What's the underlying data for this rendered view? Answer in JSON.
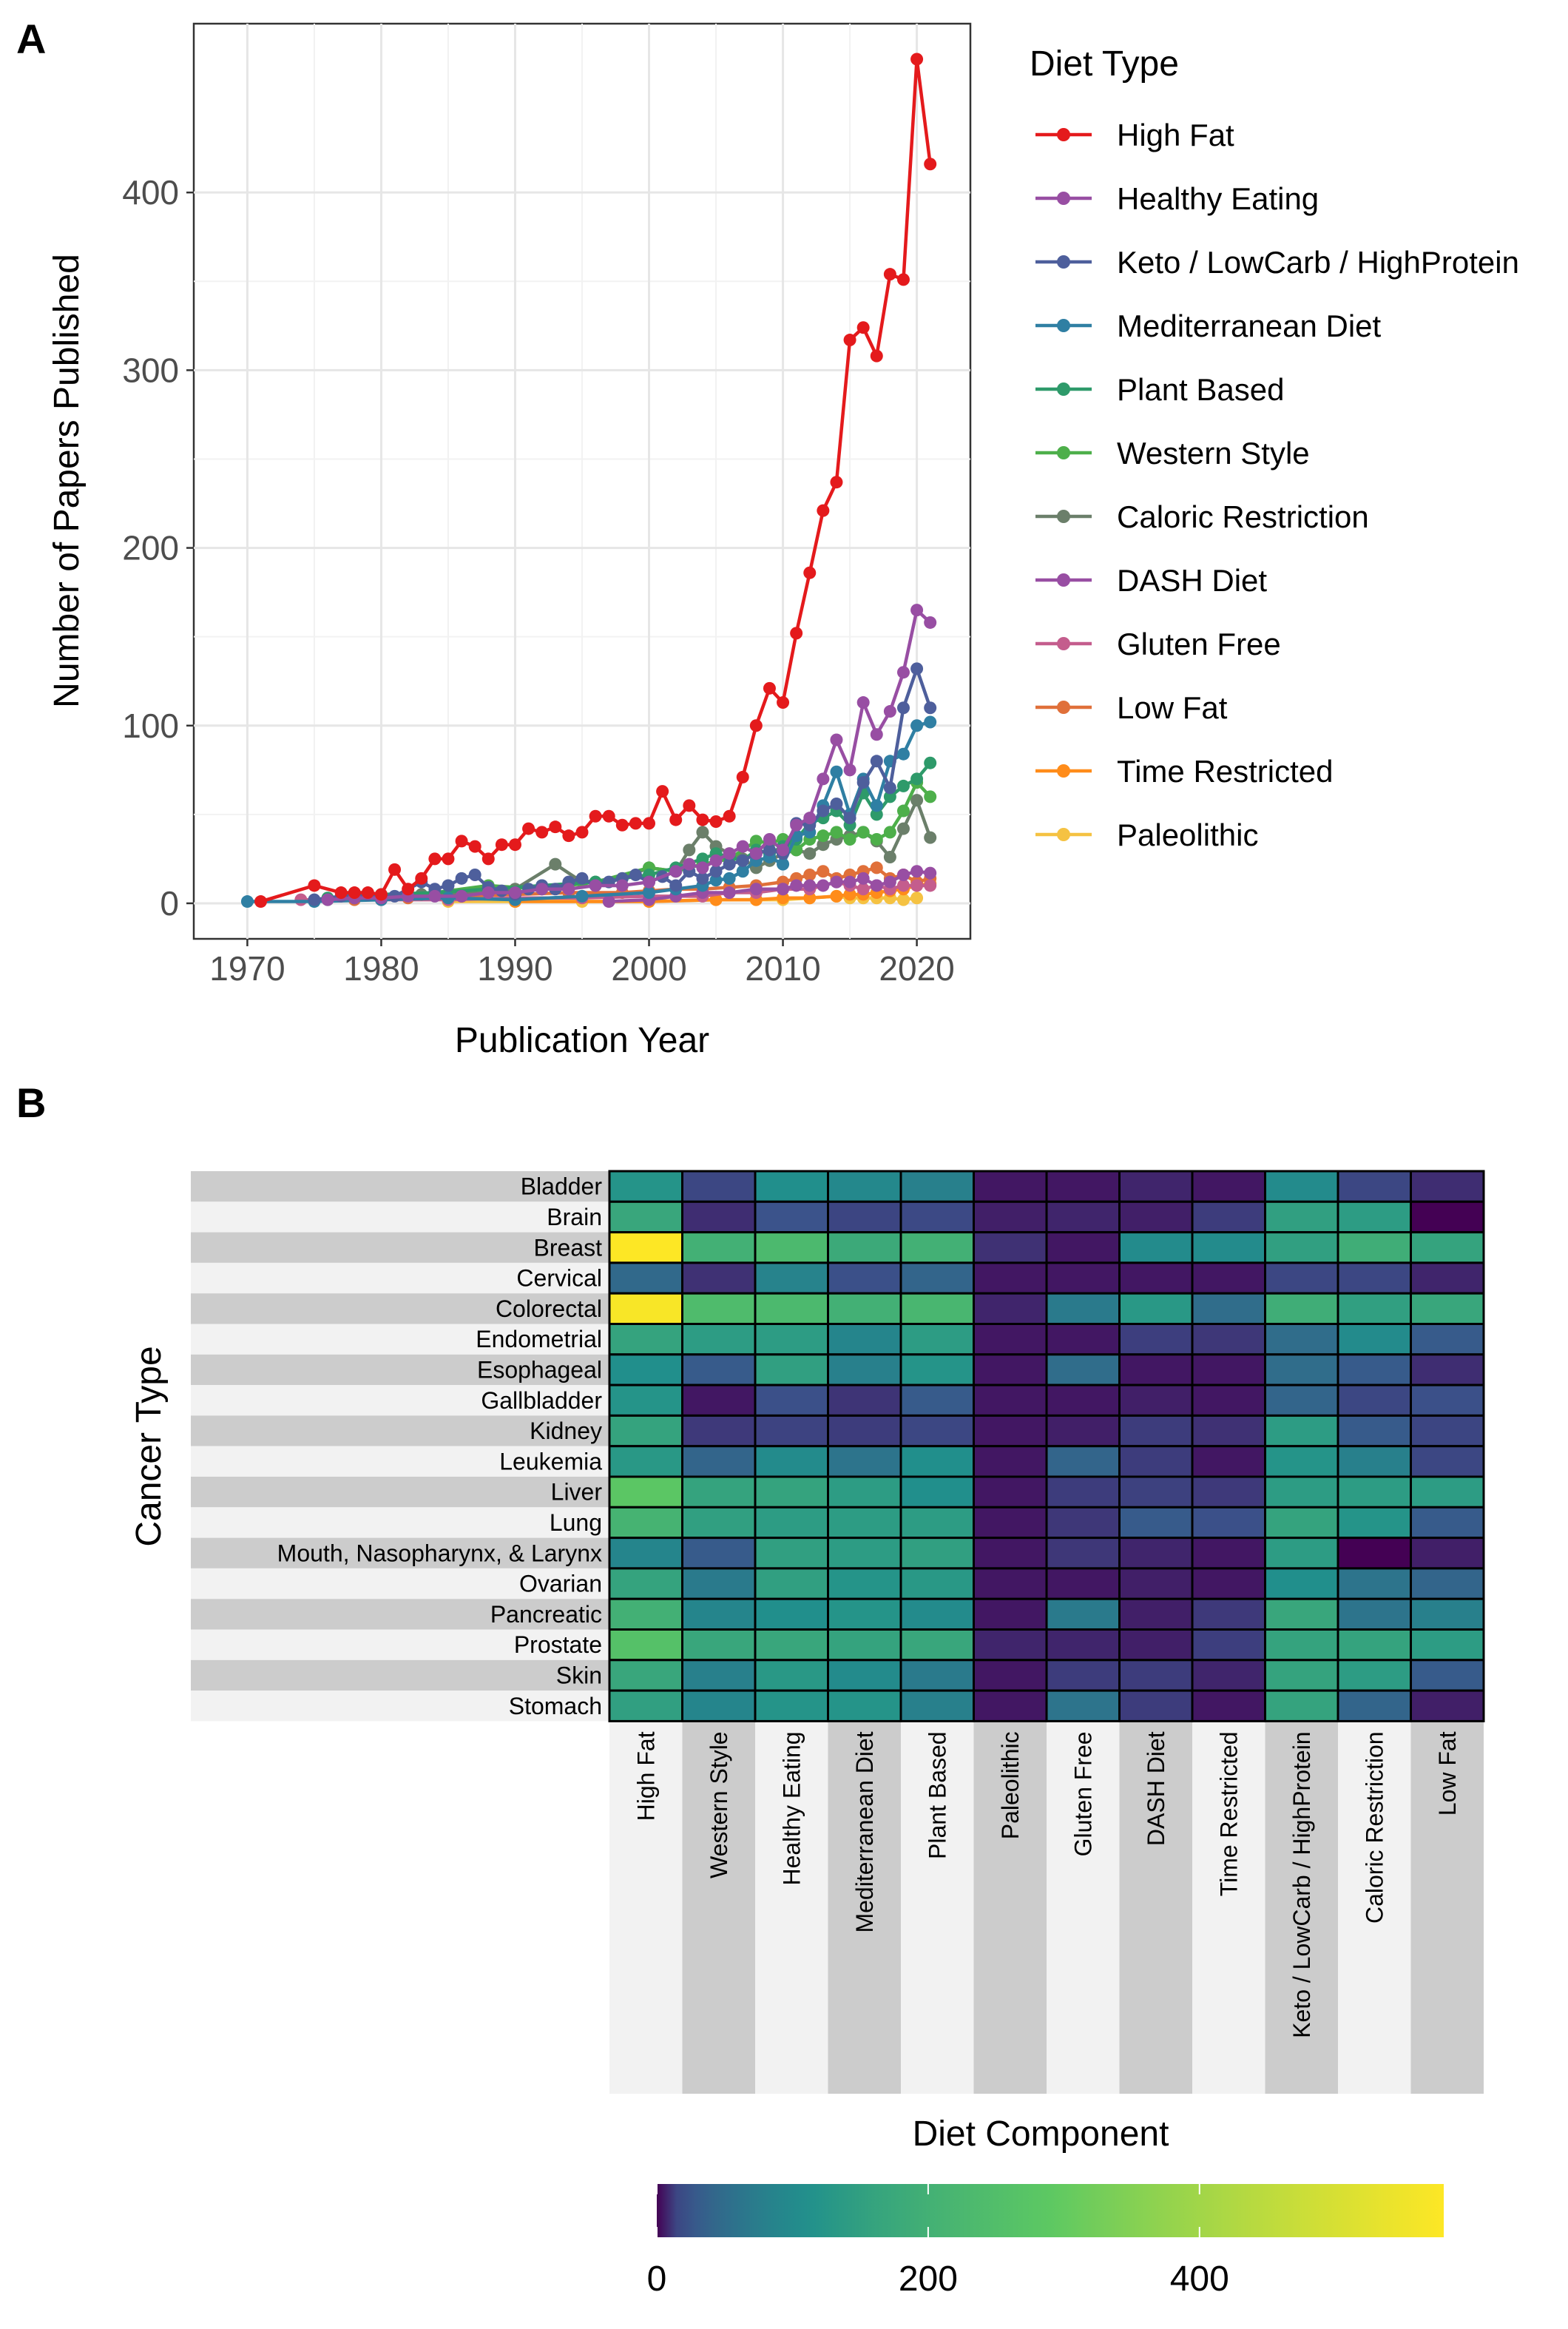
{
  "panel_a_label": "A",
  "panel_b_label": "B",
  "chart_data": [
    {
      "type": "line",
      "panel": "A",
      "xlabel": "Publication Year",
      "ylabel": "Number of Papers Published",
      "xlim": [
        1966,
        2024
      ],
      "ylim": [
        -20,
        495
      ],
      "xticks": [
        1970,
        1980,
        1990,
        2000,
        2010,
        2020
      ],
      "yticks": [
        0,
        100,
        200,
        300,
        400
      ],
      "grid": true,
      "legend_title": "Diet Type",
      "legend_position": "right",
      "series": [
        {
          "name": "High Fat",
          "color": "#e41a1c",
          "x": [
            1971,
            1975,
            1977,
            1978,
            1979,
            1980,
            1981,
            1982,
            1983,
            1984,
            1985,
            1986,
            1987,
            1988,
            1989,
            1990,
            1991,
            1992,
            1993,
            1994,
            1995,
            1996,
            1997,
            1998,
            1999,
            2000,
            2001,
            2002,
            2003,
            2004,
            2005,
            2006,
            2007,
            2008,
            2009,
            2010,
            2011,
            2012,
            2013,
            2014,
            2015,
            2016,
            2017,
            2018,
            2019,
            2020,
            2021
          ],
          "y": [
            1,
            10,
            6,
            6,
            6,
            5,
            19,
            8,
            14,
            25,
            25,
            35,
            32,
            25,
            33,
            33,
            42,
            40,
            43,
            38,
            40,
            49,
            49,
            44,
            45,
            45,
            63,
            47,
            55,
            47,
            46,
            49,
            71,
            100,
            121,
            113,
            152,
            186,
            221,
            237,
            317,
            324,
            308,
            354,
            351,
            475,
            416
          ]
        },
        {
          "name": "Healthy Eating",
          "color": "#984ea3",
          "x": [
            1976,
            1978,
            1980,
            1982,
            1984,
            1986,
            1988,
            1990,
            1992,
            1994,
            1996,
            1998,
            2000,
            2002,
            2003,
            2004,
            2005,
            2006,
            2007,
            2008,
            2009,
            2010,
            2011,
            2012,
            2013,
            2014,
            2015,
            2016,
            2017,
            2018,
            2019,
            2020,
            2021
          ],
          "y": [
            2,
            3,
            3,
            4,
            4,
            4,
            6,
            6,
            8,
            8,
            10,
            10,
            12,
            18,
            22,
            20,
            24,
            28,
            32,
            28,
            36,
            30,
            44,
            48,
            70,
            92,
            75,
            113,
            95,
            108,
            130,
            165,
            158
          ]
        },
        {
          "name": "Keto / LowCarb / HighProtein",
          "color": "#4e5f9c",
          "x": [
            1975,
            1977,
            1979,
            1981,
            1983,
            1984,
            1985,
            1986,
            1987,
            1988,
            1989,
            1990,
            1991,
            1992,
            1993,
            1994,
            1995,
            1996,
            1997,
            1998,
            1999,
            2000,
            2001,
            2002,
            2003,
            2004,
            2005,
            2006,
            2007,
            2008,
            2009,
            2010,
            2011,
            2012,
            2013,
            2014,
            2015,
            2016,
            2017,
            2018,
            2019,
            2020,
            2021
          ],
          "y": [
            2,
            4,
            5,
            4,
            12,
            8,
            10,
            14,
            16,
            9,
            7,
            5,
            8,
            10,
            8,
            12,
            14,
            10,
            12,
            14,
            16,
            12,
            15,
            10,
            18,
            14,
            18,
            22,
            24,
            28,
            30,
            28,
            45,
            44,
            52,
            56,
            48,
            68,
            80,
            65,
            110,
            132,
            110
          ]
        },
        {
          "name": "Mediterranean Diet",
          "color": "#2f7fa3",
          "x": [
            1970,
            1975,
            1980,
            1985,
            1990,
            1995,
            2000,
            2002,
            2004,
            2005,
            2006,
            2007,
            2008,
            2009,
            2010,
            2011,
            2012,
            2013,
            2014,
            2015,
            2016,
            2017,
            2018,
            2019,
            2020,
            2021
          ],
          "y": [
            1,
            1,
            2,
            3,
            2,
            4,
            6,
            8,
            10,
            13,
            14,
            18,
            24,
            26,
            22,
            38,
            40,
            55,
            74,
            50,
            70,
            55,
            80,
            84,
            100,
            102
          ]
        },
        {
          "name": "Plant Based",
          "color": "#2e9a6a",
          "x": [
            1976,
            1980,
            1984,
            1988,
            1992,
            1996,
            2000,
            2002,
            2004,
            2005,
            2006,
            2007,
            2008,
            2009,
            2010,
            2011,
            2012,
            2013,
            2014,
            2015,
            2016,
            2017,
            2018,
            2019,
            2020,
            2021
          ],
          "y": [
            3,
            5,
            6,
            8,
            10,
            12,
            16,
            20,
            25,
            28,
            26,
            24,
            30,
            28,
            32,
            36,
            45,
            48,
            52,
            44,
            62,
            50,
            60,
            66,
            70,
            79
          ]
        },
        {
          "name": "Western Style",
          "color": "#4daf4a",
          "x": [
            1976,
            1980,
            1984,
            1988,
            1992,
            1996,
            2000,
            2002,
            2004,
            2006,
            2008,
            2009,
            2010,
            2011,
            2012,
            2013,
            2014,
            2015,
            2016,
            2017,
            2018,
            2019,
            2020,
            2021
          ],
          "y": [
            2,
            3,
            6,
            10,
            8,
            12,
            20,
            18,
            22,
            25,
            35,
            34,
            36,
            30,
            36,
            38,
            40,
            36,
            40,
            36,
            40,
            52,
            68,
            60
          ]
        },
        {
          "name": "Caloric Restriction",
          "color": "#6b7f6a",
          "x": [
            1978,
            1983,
            1988,
            1990,
            1993,
            1995,
            1998,
            2000,
            2002,
            2003,
            2004,
            2005,
            2006,
            2007,
            2008,
            2009,
            2010,
            2011,
            2012,
            2013,
            2014,
            2015,
            2016,
            2017,
            2018,
            2019,
            2020,
            2021
          ],
          "y": [
            3,
            5,
            6,
            8,
            22,
            12,
            14,
            20,
            18,
            30,
            40,
            32,
            28,
            25,
            20,
            24,
            28,
            30,
            28,
            33,
            36,
            38,
            40,
            35,
            26,
            42,
            58,
            37
          ]
        },
        {
          "name": "DASH Diet",
          "color": "#984ea3",
          "x": [
            1997,
            2000,
            2002,
            2004,
            2006,
            2008,
            2010,
            2011,
            2012,
            2013,
            2014,
            2015,
            2016,
            2017,
            2018,
            2019,
            2020,
            2021
          ],
          "y": [
            1,
            2,
            4,
            6,
            6,
            8,
            8,
            10,
            10,
            10,
            12,
            12,
            14,
            10,
            12,
            16,
            18,
            17
          ]
        },
        {
          "name": "Gluten Free",
          "color": "#c45d8d",
          "x": [
            1974,
            1980,
            1985,
            1990,
            1995,
            2000,
            2004,
            2006,
            2008,
            2010,
            2012,
            2014,
            2015,
            2016,
            2017,
            2018,
            2019,
            2020,
            2021
          ],
          "y": [
            2,
            2,
            2,
            3,
            3,
            4,
            4,
            6,
            6,
            8,
            8,
            12,
            10,
            8,
            10,
            8,
            10,
            10,
            10
          ]
        },
        {
          "name": "Low Fat",
          "color": "#e0703a",
          "x": [
            1978,
            1982,
            1986,
            1990,
            1994,
            1998,
            2000,
            2002,
            2004,
            2006,
            2008,
            2010,
            2011,
            2012,
            2013,
            2014,
            2015,
            2016,
            2017,
            2018,
            2019,
            2020,
            2021
          ],
          "y": [
            2,
            3,
            4,
            5,
            6,
            6,
            7,
            8,
            8,
            9,
            10,
            12,
            14,
            16,
            18,
            14,
            16,
            18,
            20,
            14,
            16,
            12,
            14
          ]
        },
        {
          "name": "Time Restricted",
          "color": "#ff8c1a",
          "x": [
            1990,
            2000,
            2005,
            2008,
            2010,
            2012,
            2014,
            2015,
            2016,
            2017,
            2018,
            2019,
            2020,
            2021
          ],
          "y": [
            1,
            1,
            2,
            2,
            3,
            3,
            4,
            5,
            5,
            6,
            7,
            8,
            10,
            11
          ]
        },
        {
          "name": "Paleolithic",
          "color": "#f5c242",
          "x": [
            1985,
            1990,
            1995,
            2000,
            2005,
            2008,
            2010,
            2012,
            2014,
            2015,
            2016,
            2017,
            2018,
            2019,
            2020
          ],
          "y": [
            1,
            1,
            1,
            1,
            2,
            2,
            2,
            3,
            4,
            3,
            3,
            3,
            3,
            2,
            3
          ]
        }
      ]
    },
    {
      "type": "heatmap",
      "panel": "B",
      "xlabel": "Diet Component",
      "ylabel": "Cancer Type",
      "colorbar_ticks": [
        0,
        200,
        400
      ],
      "colorbar_range": [
        0,
        580
      ],
      "colors": [
        "#440154",
        "#3b528b",
        "#21908c",
        "#5ec962",
        "#fde725"
      ],
      "rows": [
        "Bladder",
        "Brain",
        "Breast",
        "Cervical",
        "Colorectal",
        "Endometrial",
        "Esophageal",
        "Gallbladder",
        "Kidney",
        "Leukemia",
        "Liver",
        "Lung",
        "Mouth, Nasopharynx, & Larynx",
        "Ovarian",
        "Pancreatic",
        "Prostate",
        "Skin",
        "Stomach"
      ],
      "columns": [
        "High Fat",
        "Western Style",
        "Healthy Eating",
        "Mediterranean Diet",
        "Plant Based",
        "Paleolithic",
        "Gluten Free",
        "DASH Diet",
        "Time Restricted",
        "Keto / LowCarb / HighProtein",
        "Caloric Restriction",
        "Low Fat"
      ],
      "values": [
        [
          120,
          15,
          110,
          95,
          80,
          1,
          1,
          3,
          1,
          100,
          15,
          5
        ],
        [
          170,
          5,
          22,
          14,
          16,
          2,
          3,
          2,
          10,
          150,
          140,
          0
        ],
        [
          580,
          200,
          230,
          180,
          200,
          6,
          1,
          100,
          100,
          150,
          190,
          160
        ],
        [
          45,
          6,
          85,
          20,
          40,
          1,
          1,
          1,
          1,
          15,
          15,
          3
        ],
        [
          570,
          240,
          230,
          200,
          220,
          3,
          70,
          130,
          50,
          190,
          150,
          170
        ],
        [
          160,
          140,
          140,
          90,
          140,
          1,
          1,
          11,
          8,
          50,
          100,
          30
        ],
        [
          110,
          30,
          150,
          80,
          120,
          1,
          50,
          1,
          1,
          50,
          30,
          5
        ],
        [
          120,
          1,
          20,
          7,
          30,
          1,
          1,
          2,
          1,
          40,
          15,
          20
        ],
        [
          160,
          9,
          13,
          10,
          15,
          1,
          2,
          10,
          6,
          140,
          30,
          14
        ],
        [
          130,
          40,
          100,
          60,
          110,
          1,
          40,
          10,
          1,
          120,
          80,
          15
        ],
        [
          280,
          160,
          160,
          140,
          110,
          1,
          10,
          12,
          9,
          140,
          140,
          140
        ],
        [
          210,
          150,
          140,
          140,
          140,
          1,
          8,
          30,
          20,
          160,
          120,
          30
        ],
        [
          90,
          30,
          150,
          140,
          150,
          1,
          8,
          3,
          1,
          140,
          0,
          2
        ],
        [
          160,
          70,
          150,
          120,
          130,
          1,
          1,
          2,
          1,
          110,
          60,
          40
        ],
        [
          200,
          90,
          110,
          120,
          100,
          1,
          70,
          2,
          9,
          170,
          60,
          80
        ],
        [
          260,
          170,
          170,
          160,
          170,
          3,
          3,
          2,
          11,
          160,
          160,
          140
        ],
        [
          170,
          80,
          130,
          100,
          70,
          1,
          10,
          10,
          3,
          160,
          140,
          30
        ],
        [
          150,
          90,
          120,
          120,
          80,
          1,
          60,
          10,
          1,
          160,
          40,
          2
        ]
      ]
    }
  ]
}
